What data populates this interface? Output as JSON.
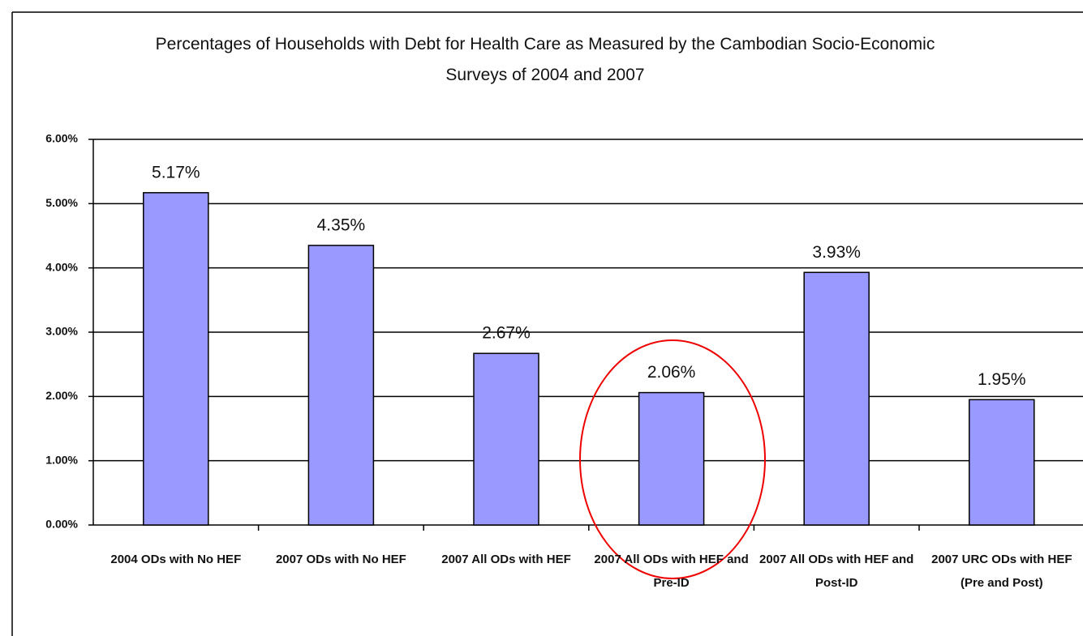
{
  "chart_data": {
    "type": "bar",
    "title": "Percentages of Households with Debt for Health Care as Measured by the Cambodian Socio-Economic Surveys of 2004 and 2007",
    "categories": [
      "2004 ODs with No HEF",
      "2007 ODs with No HEF",
      "2007 All ODs with HEF",
      "2007 All ODs with HEF and Pre-ID",
      "2007 All ODs with HEF and Post-ID",
      "2007 URC ODs with HEF (Pre and Post)"
    ],
    "values": [
      5.17,
      4.35,
      2.67,
      2.06,
      3.93,
      1.95
    ],
    "value_labels": [
      "5.17%",
      "4.35%",
      "2.67%",
      "2.06%",
      "3.93%",
      "1.95%"
    ],
    "color": "#9999ff",
    "ylim": [
      0,
      6
    ],
    "yticks": [
      {
        "value": 0,
        "label": "0.00%"
      },
      {
        "value": 1,
        "label": "1.00%"
      },
      {
        "value": 2,
        "label": "2.00%"
      },
      {
        "value": 3,
        "label": "3.00%"
      },
      {
        "value": 4,
        "label": "4.00%"
      },
      {
        "value": 5,
        "label": "5.00%"
      },
      {
        "value": 6,
        "label": "6.00%"
      }
    ],
    "grid": true
  }
}
